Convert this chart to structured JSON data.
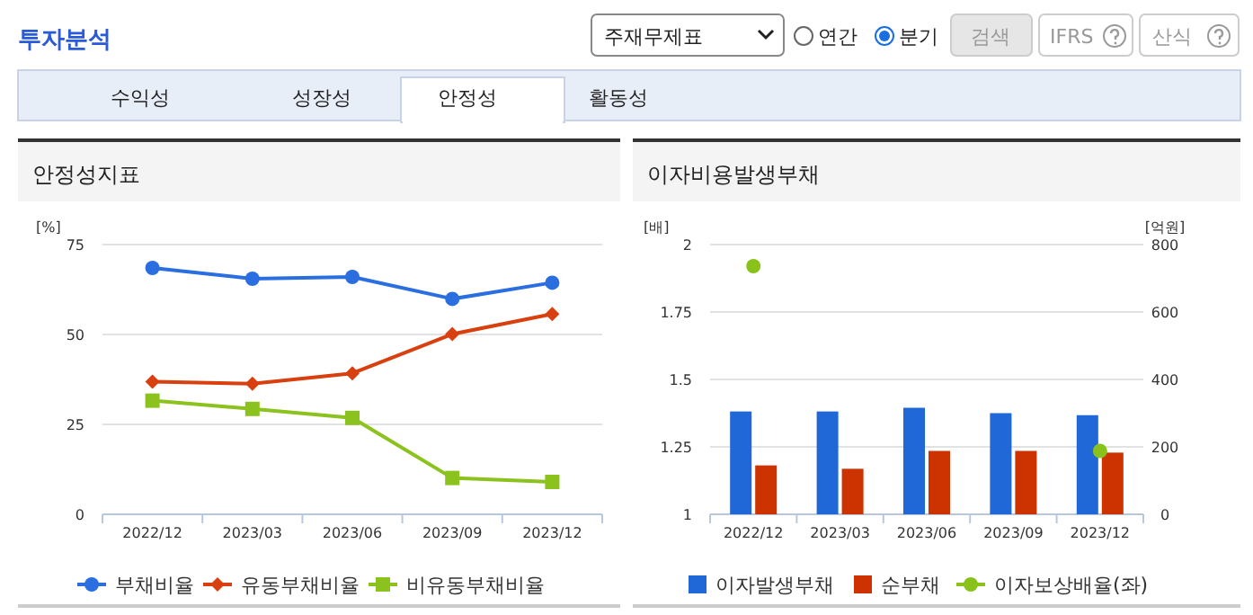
{
  "chart_data": [
    {
      "type": "line",
      "title": "안정성지표",
      "ylabel": "[%]",
      "categories": [
        "2022/12",
        "2023/03",
        "2023/06",
        "2023/09",
        "2023/12"
      ],
      "ylim": [
        0,
        75
      ],
      "yticks": [
        0,
        25,
        50,
        75
      ],
      "grid": "y",
      "legend": "bottom",
      "series": [
        {
          "name": "부채비율",
          "color": "#2a6ee0",
          "marker": "circle",
          "values": [
            68.5,
            65.5,
            66.0,
            59.9,
            64.4
          ]
        },
        {
          "name": "유동부채비율",
          "color": "#d8400f",
          "marker": "diamond",
          "values": [
            36.9,
            36.3,
            39.2,
            50.1,
            55.7
          ]
        },
        {
          "name": "비유동부채비율",
          "color": "#8cc21e",
          "marker": "square",
          "values": [
            31.6,
            29.3,
            26.8,
            10.1,
            9.0
          ]
        }
      ],
      "annotations": [
        "투자분석",
        "주재무제표",
        "연간",
        "분기",
        "검색",
        "IFRS",
        "산식",
        "수익성",
        "성장성",
        "안정성",
        "활동성"
      ]
    },
    {
      "type": "bar",
      "title": "이자비용발생부채",
      "ylabel": "[배]",
      "y2label": "[억원]",
      "categories": [
        "2022/12",
        "2023/03",
        "2023/06",
        "2023/09",
        "2023/12"
      ],
      "ylim": [
        1,
        2
      ],
      "yticks": [
        1,
        1.25,
        1.5,
        1.75,
        2
      ],
      "y2lim": [
        0,
        800
      ],
      "y2ticks": [
        0,
        200,
        400,
        600,
        800
      ],
      "grid": "y",
      "legend": "bottom",
      "series": [
        {
          "name": "이자발생부채",
          "color": "#2068d8",
          "axis": "y2",
          "values": [
            305,
            305,
            316,
            300,
            294
          ]
        },
        {
          "name": "순부채",
          "color": "#cc3300",
          "axis": "y2",
          "values": [
            145,
            135,
            188,
            188,
            183
          ]
        },
        {
          "name": "이자보상배율(좌)",
          "type": "scatter",
          "marker": "circle",
          "color": "#88c21a",
          "values": [
            1.92,
            null,
            null,
            null,
            1.235
          ]
        }
      ]
    }
  ]
}
